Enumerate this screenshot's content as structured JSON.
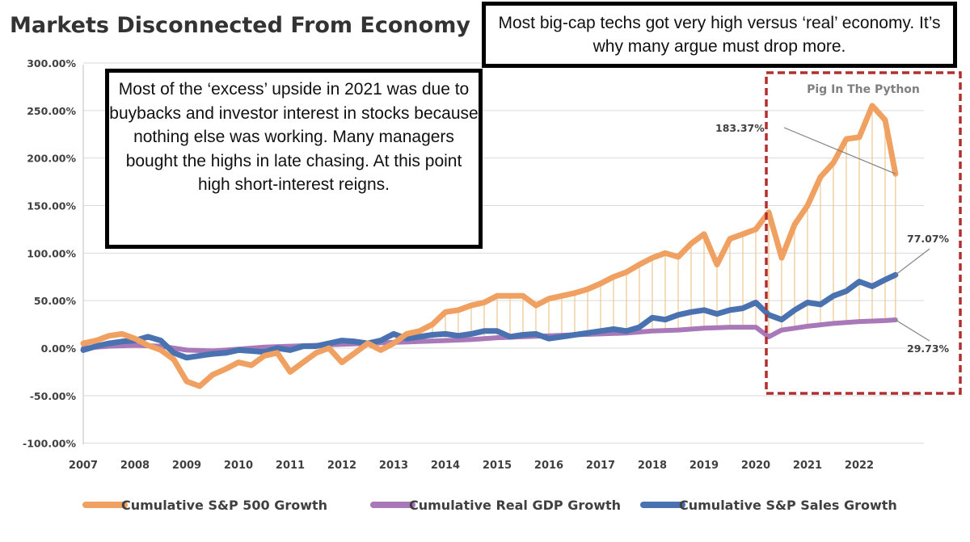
{
  "title": "Markets Disconnected From Economy",
  "callouts": {
    "top": "Most big-cap techs got very high versus ‘real’ economy. It’s why many argue must drop more.",
    "left": "Most of the ‘excess’ upside in 2021 was due to buybacks and investor interest in stocks because nothing else was working. Many managers bought the highs in late chasing. At this point high short-interest reigns."
  },
  "highlight_label": "Pig In The Python",
  "colors": {
    "sp500": "#f0a060",
    "gdp": "#a878b8",
    "sales": "#4a72b0",
    "highlight_box": "#b03030",
    "gap_lines": "#f0c88c",
    "grid": "#d9d9d9"
  },
  "chart_data": {
    "type": "line",
    "title": "Markets Disconnected From Economy",
    "x_label": "",
    "y_label": "",
    "ylim": [
      -100,
      300
    ],
    "y_ticks": [
      "300.00%",
      "250.00%",
      "200.00%",
      "150.00%",
      "100.00%",
      "50.00%",
      "0.00%",
      "-50.00%",
      "-100.00%"
    ],
    "y_tick_values": [
      300,
      250,
      200,
      150,
      100,
      50,
      0,
      -50,
      -100
    ],
    "x_ticks": [
      "2007",
      "2008",
      "2009",
      "2010",
      "2011",
      "2012",
      "2013",
      "2014",
      "2015",
      "2016",
      "2017",
      "2018",
      "2019",
      "2020",
      "2021",
      "2022"
    ],
    "xlim": [
      2007,
      2022.75
    ],
    "grid": true,
    "legend_position": "bottom",
    "series": [
      {
        "name": "Cumulative S&P 500 Growth",
        "points": [
          [
            2007.0,
            5
          ],
          [
            2007.25,
            8
          ],
          [
            2007.5,
            13
          ],
          [
            2007.75,
            15
          ],
          [
            2008.0,
            10
          ],
          [
            2008.25,
            3
          ],
          [
            2008.5,
            -2
          ],
          [
            2008.75,
            -12
          ],
          [
            2009.0,
            -35
          ],
          [
            2009.25,
            -40
          ],
          [
            2009.5,
            -28
          ],
          [
            2009.75,
            -22
          ],
          [
            2010.0,
            -15
          ],
          [
            2010.25,
            -18
          ],
          [
            2010.5,
            -8
          ],
          [
            2010.75,
            -5
          ],
          [
            2011.0,
            -25
          ],
          [
            2011.25,
            -15
          ],
          [
            2011.5,
            -5
          ],
          [
            2011.75,
            0
          ],
          [
            2012.0,
            -15
          ],
          [
            2012.25,
            -5
          ],
          [
            2012.5,
            5
          ],
          [
            2012.75,
            -2
          ],
          [
            2013.0,
            5
          ],
          [
            2013.25,
            15
          ],
          [
            2013.5,
            18
          ],
          [
            2013.75,
            25
          ],
          [
            2014.0,
            38
          ],
          [
            2014.25,
            40
          ],
          [
            2014.5,
            45
          ],
          [
            2014.75,
            48
          ],
          [
            2015.0,
            55
          ],
          [
            2015.25,
            55
          ],
          [
            2015.5,
            55
          ],
          [
            2015.75,
            45
          ],
          [
            2016.0,
            52
          ],
          [
            2016.25,
            55
          ],
          [
            2016.5,
            58
          ],
          [
            2016.75,
            62
          ],
          [
            2017.0,
            68
          ],
          [
            2017.25,
            75
          ],
          [
            2017.5,
            80
          ],
          [
            2017.75,
            88
          ],
          [
            2018.0,
            95
          ],
          [
            2018.25,
            100
          ],
          [
            2018.5,
            96
          ],
          [
            2018.75,
            110
          ],
          [
            2019.0,
            120
          ],
          [
            2019.25,
            88
          ],
          [
            2019.5,
            115
          ],
          [
            2019.75,
            120
          ],
          [
            2020.0,
            125
          ],
          [
            2020.25,
            143
          ],
          [
            2020.5,
            95
          ],
          [
            2020.75,
            130
          ],
          [
            2021.0,
            150
          ],
          [
            2021.25,
            180
          ],
          [
            2021.5,
            195
          ],
          [
            2021.75,
            220
          ],
          [
            2022.0,
            222
          ],
          [
            2022.25,
            255
          ],
          [
            2022.5,
            240
          ],
          [
            2022.7,
            183.37
          ]
        ]
      },
      {
        "name": "Cumulative Real GDP Growth",
        "points": [
          [
            2007.0,
            0
          ],
          [
            2007.5,
            2
          ],
          [
            2008.0,
            3
          ],
          [
            2008.5,
            2
          ],
          [
            2009.0,
            -2
          ],
          [
            2009.5,
            -3
          ],
          [
            2010.0,
            -1
          ],
          [
            2010.5,
            1
          ],
          [
            2011.0,
            2
          ],
          [
            2011.5,
            3
          ],
          [
            2012.0,
            4
          ],
          [
            2012.5,
            5
          ],
          [
            2013.0,
            6
          ],
          [
            2013.5,
            7
          ],
          [
            2014.0,
            8
          ],
          [
            2014.5,
            9
          ],
          [
            2015.0,
            11
          ],
          [
            2015.5,
            12
          ],
          [
            2016.0,
            13
          ],
          [
            2016.5,
            14
          ],
          [
            2017.0,
            15
          ],
          [
            2017.5,
            16
          ],
          [
            2018.0,
            18
          ],
          [
            2018.5,
            19
          ],
          [
            2019.0,
            21
          ],
          [
            2019.5,
            22
          ],
          [
            2020.0,
            22
          ],
          [
            2020.25,
            12
          ],
          [
            2020.5,
            19
          ],
          [
            2020.75,
            21
          ],
          [
            2021.0,
            23
          ],
          [
            2021.5,
            26
          ],
          [
            2022.0,
            28
          ],
          [
            2022.5,
            29
          ],
          [
            2022.7,
            29.73
          ]
        ]
      },
      {
        "name": "Cumulative S&P Sales Growth",
        "points": [
          [
            2007.0,
            -2
          ],
          [
            2007.25,
            2
          ],
          [
            2007.5,
            5
          ],
          [
            2007.75,
            7
          ],
          [
            2008.0,
            8
          ],
          [
            2008.25,
            12
          ],
          [
            2008.5,
            8
          ],
          [
            2008.75,
            -5
          ],
          [
            2009.0,
            -10
          ],
          [
            2009.25,
            -8
          ],
          [
            2009.5,
            -6
          ],
          [
            2009.75,
            -5
          ],
          [
            2010.0,
            -2
          ],
          [
            2010.25,
            -3
          ],
          [
            2010.5,
            -4
          ],
          [
            2010.75,
            0
          ],
          [
            2011.0,
            -2
          ],
          [
            2011.25,
            2
          ],
          [
            2011.5,
            2
          ],
          [
            2011.75,
            5
          ],
          [
            2012.0,
            8
          ],
          [
            2012.25,
            7
          ],
          [
            2012.5,
            5
          ],
          [
            2012.75,
            8
          ],
          [
            2013.0,
            15
          ],
          [
            2013.25,
            10
          ],
          [
            2013.5,
            12
          ],
          [
            2013.75,
            14
          ],
          [
            2014.0,
            15
          ],
          [
            2014.25,
            13
          ],
          [
            2014.5,
            15
          ],
          [
            2014.75,
            18
          ],
          [
            2015.0,
            18
          ],
          [
            2015.25,
            12
          ],
          [
            2015.5,
            14
          ],
          [
            2015.75,
            15
          ],
          [
            2016.0,
            10
          ],
          [
            2016.25,
            12
          ],
          [
            2016.5,
            14
          ],
          [
            2016.75,
            16
          ],
          [
            2017.0,
            18
          ],
          [
            2017.25,
            20
          ],
          [
            2017.5,
            18
          ],
          [
            2017.75,
            22
          ],
          [
            2018.0,
            32
          ],
          [
            2018.25,
            30
          ],
          [
            2018.5,
            35
          ],
          [
            2018.75,
            38
          ],
          [
            2019.0,
            40
          ],
          [
            2019.25,
            36
          ],
          [
            2019.5,
            40
          ],
          [
            2019.75,
            42
          ],
          [
            2020.0,
            48
          ],
          [
            2020.25,
            35
          ],
          [
            2020.5,
            30
          ],
          [
            2020.75,
            40
          ],
          [
            2021.0,
            48
          ],
          [
            2021.25,
            46
          ],
          [
            2021.5,
            55
          ],
          [
            2021.75,
            60
          ],
          [
            2022.0,
            70
          ],
          [
            2022.25,
            65
          ],
          [
            2022.5,
            72
          ],
          [
            2022.7,
            77.07
          ]
        ]
      }
    ],
    "annotations": [
      {
        "label": "183.37%",
        "x": 2022.7,
        "y": 183.37
      },
      {
        "label": "77.07%",
        "x": 2022.7,
        "y": 77.07
      },
      {
        "label": "29.73%",
        "x": 2022.7,
        "y": 29.73
      }
    ],
    "highlight_region": {
      "label": "Pig In The Python",
      "x_range": [
        2020.25,
        2022.75
      ]
    }
  }
}
